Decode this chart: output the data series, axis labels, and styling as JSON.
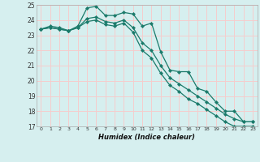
{
  "x_labels": [
    0,
    1,
    2,
    3,
    4,
    5,
    6,
    7,
    8,
    9,
    10,
    11,
    12,
    13,
    14,
    15,
    16,
    17,
    18,
    19,
    20,
    21,
    22,
    23
  ],
  "line1": [
    23.4,
    23.6,
    23.5,
    23.3,
    23.6,
    24.8,
    24.9,
    24.3,
    24.3,
    24.5,
    24.4,
    23.6,
    23.8,
    21.9,
    20.7,
    20.6,
    20.6,
    19.5,
    19.3,
    18.6,
    18.0,
    18.0,
    17.3,
    17.3
  ],
  "line2": [
    23.4,
    23.5,
    23.4,
    23.3,
    23.5,
    24.1,
    24.2,
    23.9,
    23.8,
    24.0,
    23.5,
    22.5,
    22.0,
    21.0,
    20.2,
    19.8,
    19.4,
    19.0,
    18.6,
    18.2,
    17.8,
    17.5,
    17.3,
    17.3
  ],
  "line3": [
    23.4,
    23.5,
    23.4,
    23.3,
    23.5,
    23.9,
    24.0,
    23.7,
    23.6,
    23.8,
    23.2,
    22.0,
    21.5,
    20.5,
    19.7,
    19.3,
    18.8,
    18.5,
    18.1,
    17.7,
    17.3,
    17.0,
    17.0,
    17.0
  ],
  "ylim": [
    17,
    25
  ],
  "yticks": [
    17,
    18,
    19,
    20,
    21,
    22,
    23,
    24,
    25
  ],
  "background_color": "#d6efef",
  "grid_color": "#f5cccc",
  "line_color": "#1a7a6a",
  "xlabel": "Humidex (Indice chaleur)"
}
